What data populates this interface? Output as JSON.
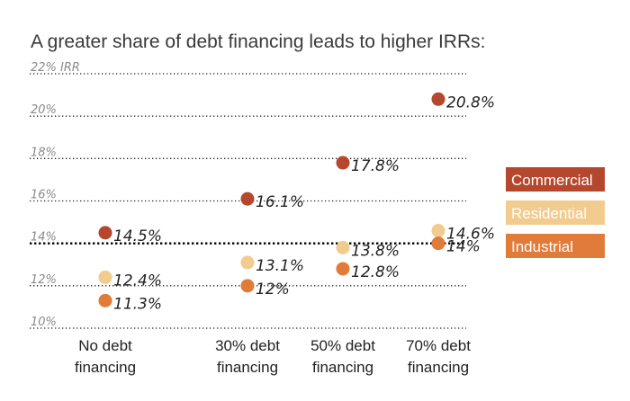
{
  "title": "A greater share of debt financing leads to higher IRRs:",
  "chart_data": {
    "type": "scatter",
    "title": "A greater share of debt financing leads to higher IRRs:",
    "categories": [
      "No debt financing",
      "30% debt financing",
      "50% debt financing",
      "70% debt financing"
    ],
    "category_lines": [
      [
        "No debt",
        "financing"
      ],
      [
        "30% debt",
        "financing"
      ],
      [
        "50% debt",
        "financing"
      ],
      [
        "70% debt",
        "financing"
      ]
    ],
    "y_ticks": [
      {
        "value": 10,
        "label": "10%"
      },
      {
        "value": 12,
        "label": "12%"
      },
      {
        "value": 14,
        "label": "14%"
      },
      {
        "value": 16,
        "label": "16%"
      },
      {
        "value": 18,
        "label": "18%"
      },
      {
        "value": 20,
        "label": "20%"
      },
      {
        "value": 22,
        "label": "22% IRR"
      }
    ],
    "ylim": [
      10,
      22
    ],
    "baseline": 14,
    "grid": true,
    "legend_position": "right",
    "series": [
      {
        "name": "Commercial",
        "color": "#b5472f",
        "values": [
          14.5,
          16.1,
          17.8,
          20.8
        ],
        "labels": [
          "14.5%",
          "16.1%",
          "17.8%",
          "20.8%"
        ]
      },
      {
        "name": "Residential",
        "color": "#f2cb8f",
        "values": [
          12.4,
          13.1,
          13.8,
          14.6
        ],
        "labels": [
          "12.4%",
          "13.1%",
          "13.8%",
          "14.6%"
        ]
      },
      {
        "name": "Industrial",
        "color": "#e07b39",
        "values": [
          11.3,
          12,
          12.8,
          14
        ],
        "labels": [
          "11.3%",
          "12%",
          "12.8%",
          "14%"
        ]
      }
    ]
  }
}
